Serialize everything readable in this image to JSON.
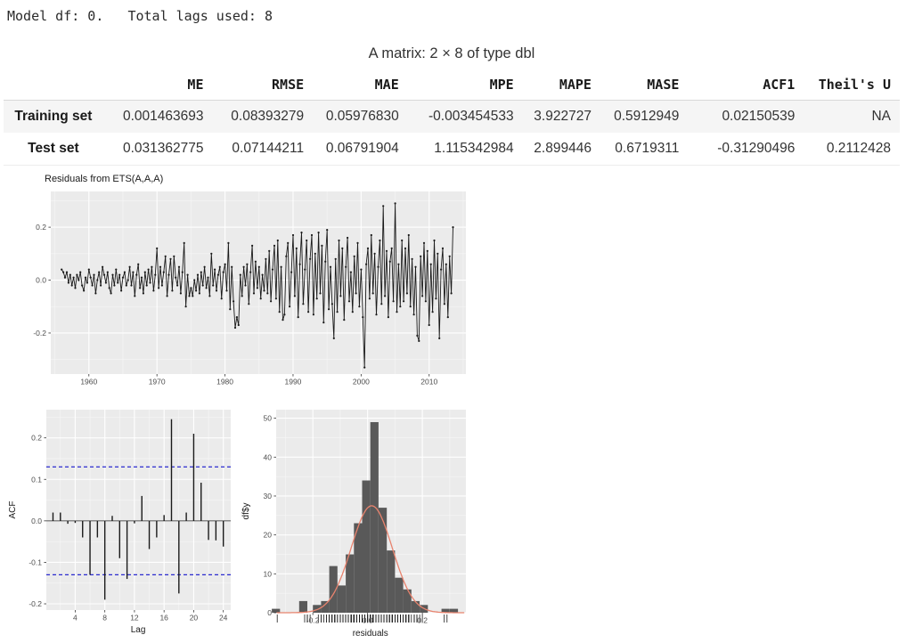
{
  "header_text": "Model df: 0.   Total lags used: 8",
  "table": {
    "caption": "A matrix: 2 × 8 of type dbl",
    "columns": [
      "ME",
      "RMSE",
      "MAE",
      "MPE",
      "MAPE",
      "MASE",
      "ACF1",
      "Theil's U"
    ],
    "rows": [
      {
        "label": "Training set",
        "values": [
          "0.001463693",
          "0.08393279",
          "0.05976830",
          "-0.003454533",
          "3.922727",
          "0.5912949",
          "0.02150539",
          "NA"
        ]
      },
      {
        "label": "Test set",
        "values": [
          "0.031362775",
          "0.07144211",
          "0.06791904",
          "1.115342984",
          "2.899446",
          "0.6719311",
          "-0.31290496",
          "0.2112428"
        ]
      }
    ]
  },
  "colors": {
    "panel": "#EBEBEB",
    "grid_major": "#FFFFFF",
    "grid_minor": "#F7F7F7",
    "series": "#1A1A1A",
    "conf_line": "#2A2ACF",
    "hist_fill": "#595959",
    "density": "#E8836E",
    "tick_label": "#4D4D4D",
    "axis_title": "#1A1A1A"
  },
  "chart_data": [
    {
      "type": "line",
      "title": "Residuals from ETS(A,A,A)",
      "xlabel": "",
      "ylabel": "",
      "x_start": 1956,
      "x_step": 0.25,
      "xlim": [
        1954.4,
        2015.4
      ],
      "ylim": [
        -0.355,
        0.335
      ],
      "x_ticks": [
        [
          1960,
          "1960"
        ],
        [
          1970,
          "1970"
        ],
        [
          1980,
          "1980"
        ],
        [
          1990,
          "1990"
        ],
        [
          2000,
          "2000"
        ],
        [
          2010,
          "2010"
        ]
      ],
      "x_minor": [
        1955,
        1965,
        1975,
        1985,
        1995,
        2005,
        2015
      ],
      "y_ticks": [
        [
          0.2,
          "0.2"
        ],
        [
          0,
          "0.0"
        ],
        [
          -0.2,
          "-0.2"
        ]
      ],
      "y_minor": [
        0.3,
        0.1,
        -0.1,
        -0.3
      ],
      "values": [
        0.04,
        0.03,
        0.01,
        0.03,
        -0.01,
        0.02,
        -0.02,
        0.01,
        -0.03,
        0.02,
        0.0,
        0.03,
        -0.02,
        -0.04,
        0.01,
        -0.01,
        0.04,
        0.01,
        -0.02,
        0.02,
        -0.05,
        0.0,
        0.03,
        -0.02,
        0.05,
        0.02,
        -0.01,
        0.03,
        -0.03,
        -0.05,
        0.02,
        -0.02,
        0.04,
        -0.01,
        0.02,
        -0.04,
        0.01,
        0.03,
        -0.02,
        0.0,
        0.05,
        -0.02,
        0.03,
        -0.06,
        0.02,
        0.06,
        -0.03,
        0.01,
        -0.05,
        0.03,
        -0.02,
        0.04,
        -0.01,
        0.05,
        -0.04,
        0.02,
        0.12,
        -0.03,
        0.05,
        -0.02,
        0.03,
        0.09,
        -0.06,
        0.02,
        0.08,
        -0.04,
        0.09,
        0.01,
        -0.02,
        0.05,
        -0.05,
        0.03,
        0.14,
        -0.1,
        0.02,
        -0.06,
        -0.03,
        -0.06,
        0.0,
        -0.04,
        0.02,
        -0.05,
        0.03,
        -0.02,
        0.05,
        -0.03,
        0.01,
        -0.06,
        0.1,
        -0.02,
        0.04,
        -0.04,
        0.02,
        0.05,
        -0.07,
        0.03,
        0.06,
        -0.04,
        0.14,
        -0.11,
        0.05,
        -0.08,
        -0.18,
        -0.14,
        -0.17,
        0.02,
        -0.06,
        0.05,
        -0.02,
        0.06,
        -0.09,
        0.03,
        0.13,
        -0.05,
        0.07,
        -0.03,
        0.05,
        -0.07,
        0.02,
        -0.04,
        0.08,
        -0.05,
        0.11,
        -0.08,
        0.04,
        0.13,
        -0.07,
        0.15,
        -0.12,
        0.05,
        -0.15,
        -0.13,
        0.09,
        0.14,
        -0.1,
        0.03,
        0.17,
        -0.06,
        0.12,
        -0.14,
        0.06,
        0.18,
        -0.09,
        0.04,
        0.15,
        -0.12,
        0.08,
        0.17,
        -0.13,
        0.1,
        -0.07,
        0.18,
        -0.05,
        0.13,
        -0.16,
        0.07,
        0.19,
        -0.11,
        0.05,
        -0.09,
        -0.22,
        0.08,
        -0.12,
        0.15,
        -0.06,
        0.12,
        -0.15,
        0.05,
        0.16,
        -0.08,
        0.03,
        -0.12,
        0.09,
        -0.05,
        0.14,
        -0.1,
        0.04,
        -0.14,
        -0.33,
        0.06,
        0.12,
        -0.07,
        0.17,
        -0.05,
        0.1,
        -0.13,
        0.05,
        0.15,
        -0.09,
        0.28,
        -0.06,
        0.11,
        -0.14,
        0.07,
        0.12,
        -0.08,
        0.29,
        -0.12,
        0.06,
        -0.1,
        0.15,
        -0.08,
        0.12,
        -0.05,
        0.17,
        -0.1,
        0.08,
        -0.13,
        0.05,
        -0.21,
        -0.23,
        0.09,
        -0.06,
        0.14,
        -0.08,
        0.11,
        -0.17,
        0.06,
        -0.12,
        0.15,
        -0.07,
        0.1,
        -0.22,
        0.04,
        0.12,
        -0.09,
        0.06,
        -0.14,
        0.09,
        -0.05,
        0.2
      ]
    },
    {
      "type": "bar",
      "title": "",
      "xlabel": "Lag",
      "ylabel": "ACF",
      "xlim": [
        0.1,
        25
      ],
      "ylim": [
        -0.215,
        0.268
      ],
      "x_ticks": [
        [
          4,
          "4"
        ],
        [
          8,
          "8"
        ],
        [
          12,
          "12"
        ],
        [
          16,
          "16"
        ],
        [
          20,
          "20"
        ],
        [
          24,
          "24"
        ]
      ],
      "x_minor": [
        2,
        6,
        10,
        14,
        18,
        22
      ],
      "y_ticks": [
        [
          0.2,
          "0.2"
        ],
        [
          0.1,
          "0.1"
        ],
        [
          0,
          "0.0"
        ],
        [
          -0.1,
          "-0.1"
        ],
        [
          -0.2,
          "-0.2"
        ]
      ],
      "y_minor": [
        0.25,
        0.15,
        0.05,
        -0.05,
        -0.15
      ],
      "conf_band": 0.13,
      "lags": [
        1,
        2,
        3,
        4,
        5,
        6,
        7,
        8,
        9,
        10,
        11,
        12,
        13,
        14,
        15,
        16,
        17,
        18,
        19,
        20,
        21,
        22,
        23,
        24
      ],
      "values": [
        0.02,
        0.02,
        -0.007,
        -0.005,
        -0.04,
        -0.13,
        -0.04,
        -0.19,
        0.012,
        -0.09,
        -0.14,
        -0.006,
        0.06,
        -0.068,
        -0.04,
        0.014,
        0.245,
        -0.175,
        0.02,
        0.21,
        0.092,
        -0.046,
        -0.047,
        -0.062
      ]
    },
    {
      "type": "histogram",
      "title": "",
      "xlabel": "residuals",
      "ylabel": "df$y",
      "xlim": [
        -0.334,
        0.359
      ],
      "ylim": [
        0,
        52.2
      ],
      "x_ticks": [
        [
          -0.2,
          "-0.2"
        ],
        [
          0,
          "0.0"
        ],
        [
          0.2,
          "0.2"
        ]
      ],
      "x_minor": [
        -0.3,
        -0.1,
        0.1,
        0.3
      ],
      "y_ticks": [
        [
          0,
          "0"
        ],
        [
          10,
          "10"
        ],
        [
          20,
          "20"
        ],
        [
          30,
          "30"
        ],
        [
          40,
          "40"
        ],
        [
          50,
          "50"
        ]
      ],
      "y_minor": [
        5,
        15,
        25,
        35,
        45
      ],
      "bin_width": 0.03,
      "bars": [
        [
          -0.335,
          1
        ],
        [
          -0.235,
          3
        ],
        [
          -0.185,
          2
        ],
        [
          -0.155,
          3
        ],
        [
          -0.125,
          12
        ],
        [
          -0.095,
          7
        ],
        [
          -0.065,
          15
        ],
        [
          -0.035,
          23
        ],
        [
          -0.005,
          34
        ],
        [
          0.025,
          49
        ],
        [
          0.055,
          27
        ],
        [
          0.085,
          16
        ],
        [
          0.115,
          9
        ],
        [
          0.145,
          6
        ],
        [
          0.175,
          3
        ],
        [
          0.205,
          2
        ],
        [
          0.285,
          1
        ],
        [
          0.315,
          1
        ]
      ],
      "curve": {
        "mean": 0.015,
        "sd": 0.075,
        "peak": 27.5
      }
    }
  ]
}
